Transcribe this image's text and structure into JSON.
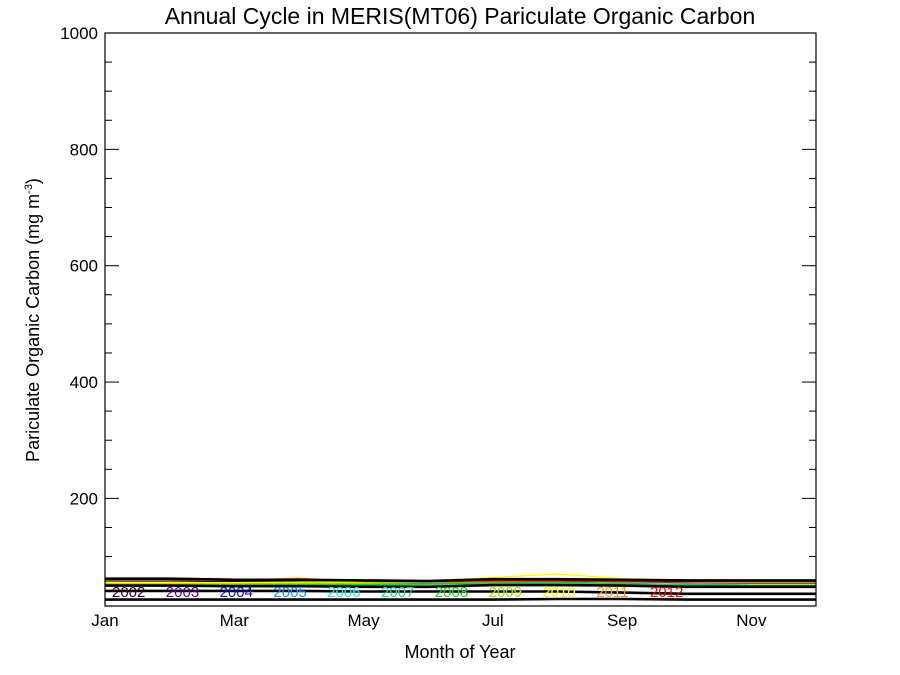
{
  "chart_data": {
    "type": "line",
    "title": "Annual Cycle in MERIS(MT06) Pariculate Organic Carbon",
    "xlabel": "Month of Year",
    "ylabel": "Pariculate Organic Carbon (mg m",
    "ylabel_sup": "-3",
    "ylabel_close": ")",
    "xlim": [
      1,
      12
    ],
    "ylim": [
      15,
      1000
    ],
    "x_ticks": [
      {
        "label": "Jan",
        "value": 1
      },
      {
        "label": "Mar",
        "value": 3
      },
      {
        "label": "May",
        "value": 5
      },
      {
        "label": "Jul",
        "value": 7
      },
      {
        "label": "Sep",
        "value": 9
      },
      {
        "label": "Nov",
        "value": 11
      }
    ],
    "y_ticks": [
      {
        "label": "200",
        "value": 200
      },
      {
        "label": "400",
        "value": 400
      },
      {
        "label": "600",
        "value": 600
      },
      {
        "label": "800",
        "value": 800
      },
      {
        "label": "1000",
        "value": 1000
      }
    ],
    "y_minor_ticks": [
      50,
      100,
      150,
      250,
      300,
      350,
      450,
      500,
      550,
      650,
      700,
      750,
      850,
      900,
      950
    ],
    "x": [
      1,
      2,
      3,
      4,
      5,
      6,
      7,
      8,
      9,
      10,
      11,
      12
    ],
    "series": [
      {
        "name": "2002",
        "color": "#3a0030",
        "values": [
          58,
          58,
          57,
          57,
          56,
          56,
          58,
          58,
          58,
          58,
          57,
          57
        ]
      },
      {
        "name": "2003",
        "color": "#5a00a0",
        "values": [
          55,
          55,
          54,
          55,
          55,
          55,
          58,
          58,
          57,
          55,
          54,
          54
        ]
      },
      {
        "name": "2004",
        "color": "#1010cc",
        "values": [
          52,
          52,
          52,
          54,
          56,
          56,
          57,
          55,
          53,
          52,
          51,
          51
        ]
      },
      {
        "name": "2005",
        "color": "#1c8cff",
        "values": [
          51,
          51,
          51,
          52,
          53,
          54,
          56,
          55,
          53,
          51,
          50,
          50
        ]
      },
      {
        "name": "2006",
        "color": "#28e0e0",
        "values": [
          50,
          50,
          50,
          51,
          52,
          52,
          54,
          54,
          52,
          51,
          50,
          50
        ]
      },
      {
        "name": "2007",
        "color": "#22d088",
        "values": [
          50,
          50,
          50,
          50,
          51,
          52,
          54,
          54,
          52,
          50,
          49,
          49
        ]
      },
      {
        "name": "2008",
        "color": "#22cc22",
        "values": [
          51,
          51,
          51,
          52,
          52,
          53,
          55,
          56,
          54,
          52,
          51,
          51
        ]
      },
      {
        "name": "2009",
        "color": "#99dd00",
        "values": [
          53,
          53,
          53,
          54,
          54,
          56,
          58,
          60,
          58,
          56,
          55,
          55
        ]
      },
      {
        "name": "2010",
        "color": "#ffff00",
        "values": [
          55,
          55,
          55,
          56,
          56,
          58,
          64,
          70,
          62,
          58,
          58,
          58
        ]
      },
      {
        "name": "2011",
        "color": "#ff9900",
        "values": [
          60,
          60,
          59,
          63,
          57,
          56,
          57,
          58,
          60,
          59,
          59,
          59
        ]
      },
      {
        "name": "2012",
        "color": "#ff0000",
        "values": [
          63,
          63,
          61,
          60,
          58,
          57,
          58,
          58,
          57,
          57,
          57,
          57
        ]
      }
    ],
    "summary_lines": [
      {
        "color": "#000000",
        "values": [
          62,
          62,
          60,
          60,
          59,
          58,
          61,
          61,
          60,
          59,
          59,
          59
        ]
      },
      {
        "color": "#000000",
        "values": [
          50,
          50,
          49,
          49,
          48,
          48,
          51,
          51,
          50,
          48,
          48,
          48
        ]
      },
      {
        "color": "#000000",
        "values": [
          41,
          41,
          41,
          41,
          40,
          40,
          40,
          40,
          38,
          36,
          36,
          36
        ]
      },
      {
        "color": "#000000",
        "values": [
          26,
          26,
          26,
          26,
          26,
          26,
          26,
          27,
          27,
          26,
          26,
          26
        ]
      }
    ]
  }
}
